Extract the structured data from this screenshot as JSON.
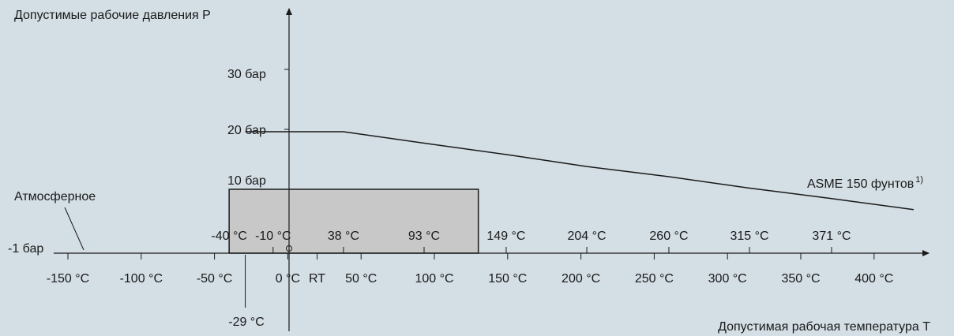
{
  "chart_data": {
    "type": "line",
    "ylabel": "Допустимые рабочие давления P",
    "xlabel": "Допустимая рабочая температура T",
    "y_ticks": [
      "30 бар",
      "20 бар",
      "10 бар",
      "-1 бар"
    ],
    "x_ticks_below": [
      "-150 °C",
      "-100 °C",
      "-50 °C",
      "0 °C",
      "RT",
      "50 °C",
      "100 °C",
      "150 °C",
      "200 °C",
      "250 °C",
      "300 °C",
      "350 °C",
      "400 °C"
    ],
    "x_ticks_above": [
      "-40 °C",
      "-10 °C",
      "38 °C",
      "93 °C",
      "149 °C",
      "204 °C",
      "260 °C",
      "315 °C",
      "371 °C"
    ],
    "extra_tick": "-29 °C",
    "atmospheric_label": "Атмосферное",
    "series": [
      {
        "name": "ASME 150 фунтов",
        "footnote": "1)",
        "x": [
          -29,
          38,
          93,
          149,
          204,
          260,
          315,
          371,
          427
        ],
        "y": [
          19.6,
          19.6,
          17.7,
          15.8,
          13.8,
          12.1,
          10.2,
          8.4,
          6.5
        ]
      }
    ],
    "operating_range": {
      "t_min": -40,
      "t_max": 130,
      "p_min": -1,
      "p_max": 10
    },
    "colors": {
      "background": "#d4dee5",
      "range_fill": "#c8c8c8",
      "line": "#1a1a1a"
    }
  }
}
